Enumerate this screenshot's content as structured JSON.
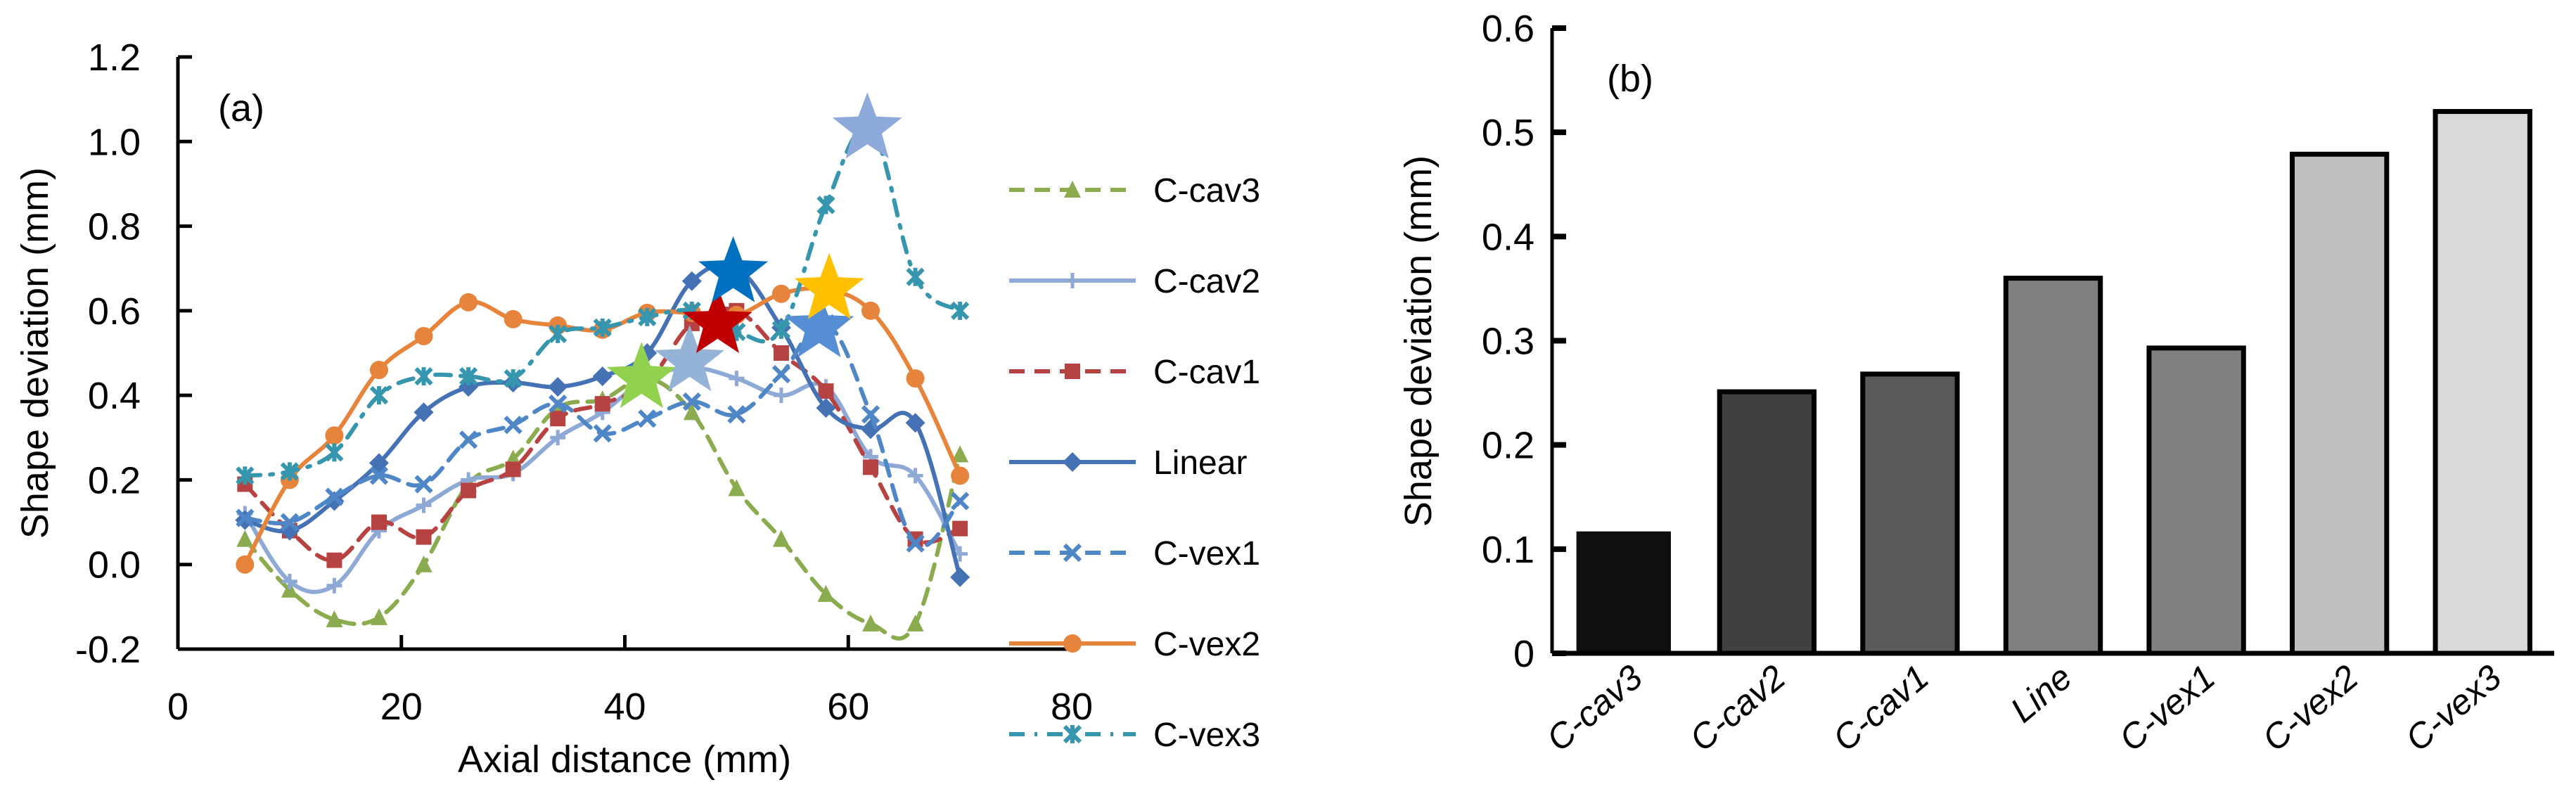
{
  "chart_data": [
    {
      "panel": "(a)",
      "type": "line",
      "title": "",
      "xlabel": "Axial distance (mm)",
      "ylabel": "Shape deviation (mm)",
      "xlim": [
        0,
        80
      ],
      "ylim": [
        -0.2,
        1.2
      ],
      "xticks": [
        0,
        20,
        40,
        60,
        80
      ],
      "xtick_labels": [
        "0",
        "20",
        "40",
        "60",
        "80"
      ],
      "yticks": [
        -0.2,
        0.0,
        0.2,
        0.4,
        0.6,
        0.8,
        1.0,
        1.2
      ],
      "ytick_labels": [
        "-0.2",
        "0.0",
        "0.2",
        "0.4",
        "0.6",
        "0.8",
        "1.0",
        "1.2"
      ],
      "grid": false,
      "legend_position": "right",
      "x": [
        6,
        10,
        14,
        18,
        22,
        26,
        30,
        34,
        38,
        42,
        46,
        50,
        54,
        58,
        62,
        66,
        70
      ],
      "series": [
        {
          "name": "C-cav3",
          "color": "#8aac4e",
          "line_style": "dashed",
          "marker": "triangle",
          "values": [
            0.06,
            -0.06,
            -0.13,
            -0.125,
            0.0,
            0.19,
            0.25,
            0.37,
            0.39,
            0.44,
            0.36,
            0.18,
            0.06,
            -0.07,
            -0.14,
            -0.14,
            0.26
          ]
        },
        {
          "name": "C-cav2",
          "color": "#8ea9d5",
          "line_style": "solid",
          "marker": "plus",
          "values": [
            0.12,
            -0.04,
            -0.05,
            0.08,
            0.14,
            0.2,
            0.215,
            0.3,
            0.36,
            0.44,
            0.465,
            0.44,
            0.4,
            0.42,
            0.255,
            0.21,
            0.025
          ]
        },
        {
          "name": "C-cav1",
          "color": "#b64341",
          "line_style": "dashed",
          "marker": "square",
          "values": [
            0.19,
            0.08,
            0.01,
            0.1,
            0.065,
            0.175,
            0.225,
            0.345,
            0.38,
            0.43,
            0.57,
            0.6,
            0.5,
            0.41,
            0.23,
            0.06,
            0.085
          ]
        },
        {
          "name": "Linear",
          "color": "#4472b4",
          "line_style": "solid",
          "marker": "diamond",
          "values": [
            0.105,
            0.08,
            0.15,
            0.24,
            0.36,
            0.42,
            0.43,
            0.42,
            0.445,
            0.5,
            0.67,
            0.7,
            0.56,
            0.37,
            0.32,
            0.335,
            -0.03
          ]
        },
        {
          "name": "C-vex1",
          "color": "#4f86c6",
          "line_style": "dashed",
          "marker": "x",
          "values": [
            0.11,
            0.1,
            0.16,
            0.21,
            0.19,
            0.295,
            0.33,
            0.38,
            0.31,
            0.345,
            0.385,
            0.355,
            0.45,
            0.57,
            0.355,
            0.05,
            0.15
          ]
        },
        {
          "name": "C-vex2",
          "color": "#e5843a",
          "line_style": "solid",
          "marker": "circle",
          "values": [
            0.0,
            0.2,
            0.305,
            0.46,
            0.54,
            0.62,
            0.58,
            0.565,
            0.555,
            0.595,
            0.595,
            0.59,
            0.64,
            0.65,
            0.6,
            0.44,
            0.21
          ]
        },
        {
          "name": "C-vex3",
          "color": "#3596ae",
          "line_style": "dashdot",
          "marker": "asterisk",
          "values": [
            0.21,
            0.22,
            0.265,
            0.4,
            0.445,
            0.445,
            0.44,
            0.545,
            0.56,
            0.585,
            0.6,
            0.55,
            0.555,
            0.85,
            1.03,
            0.68,
            0.6
          ]
        }
      ],
      "annotations": [
        {
          "type": "star",
          "series": "C-cav3",
          "x": 41.5,
          "y": 0.44,
          "color": "#92d050"
        },
        {
          "type": "star",
          "series": "C-cav2",
          "x": 45.8,
          "y": 0.48,
          "color": "#95b3d7"
        },
        {
          "type": "star",
          "series": "C-cav1",
          "x": 48.3,
          "y": 0.57,
          "color": "#c00000"
        },
        {
          "type": "star",
          "series": "Linear",
          "x": 49.7,
          "y": 0.69,
          "color": "#0070c0"
        },
        {
          "type": "star",
          "series": "C-vex1",
          "x": 57.4,
          "y": 0.56,
          "color": "#558ed5"
        },
        {
          "type": "star",
          "series": "C-vex2",
          "x": 58.3,
          "y": 0.65,
          "color": "#ffc000"
        },
        {
          "type": "star",
          "series": "C-vex3",
          "x": 61.7,
          "y": 1.03,
          "color": "#8eaadb"
        }
      ]
    },
    {
      "panel": "(b)",
      "type": "bar",
      "title": "",
      "xlabel": "",
      "ylabel": "Shape deviation (mm)",
      "ylim": [
        0,
        0.6
      ],
      "yticks": [
        0,
        0.1,
        0.2,
        0.3,
        0.4,
        0.5,
        0.6
      ],
      "ytick_labels": [
        "0",
        "0.1",
        "0.2",
        "0.3",
        "0.4",
        "0.5",
        "0.6"
      ],
      "grid": false,
      "categories": [
        "C-cav3",
        "C-cav2",
        "C-cav1",
        "Line",
        "C-vex1",
        "C-vex2",
        "C-vex3"
      ],
      "values": [
        0.117,
        0.251,
        0.268,
        0.36,
        0.293,
        0.479,
        0.52
      ],
      "colors": [
        "#0f0f0f",
        "#404040",
        "#5a5a5a",
        "#808080",
        "#808080",
        "#bfbfbf",
        "#d9d9d9"
      ]
    }
  ]
}
